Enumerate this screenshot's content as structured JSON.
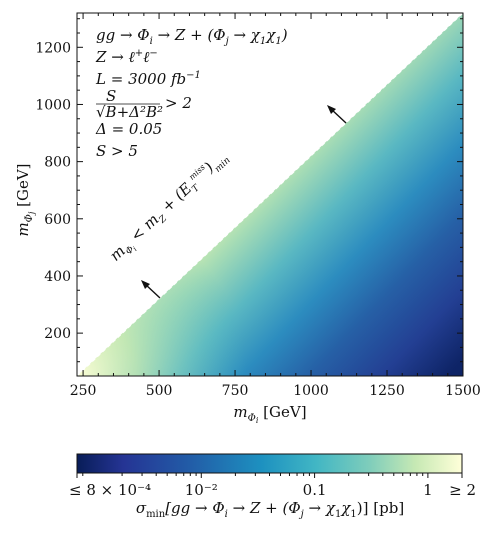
{
  "chart_data": {
    "type": "heatmap",
    "title": "",
    "xlabel": "m_{Φ_i} [GeV]",
    "ylabel": "m_{Φ_j} [GeV]",
    "xlim": [
      230,
      1500
    ],
    "ylim": [
      50,
      1320
    ],
    "x_ticks": [
      250,
      500,
      750,
      1000,
      1250,
      1500
    ],
    "x_tick_labels": [
      "250",
      "500",
      "750",
      "1000",
      "1250",
      "1500"
    ],
    "y_ticks": [
      200,
      400,
      600,
      800,
      1000,
      1200
    ],
    "y_tick_labels": [
      "200",
      "400",
      "600",
      "800",
      "1000",
      "1200"
    ],
    "grid": false,
    "colormap": "YlGnBu",
    "colorbar": {
      "scale": "log",
      "range": [
        0.0008,
        2
      ],
      "ticks": [
        0.0008,
        0.01,
        0.1,
        1,
        2
      ],
      "tick_labels": [
        "≤ 8 × 10⁻⁴",
        "10⁻²",
        "0.1",
        "1",
        "≥ 2"
      ],
      "label": "σ_min[gg → Φ_i → Z + (Φ_j → χ₁χ₁)] [pb]"
    },
    "boundary": {
      "description": "m_{Φ_j} < m_{Φ_i} − m_Z",
      "line": [
        [
          230,
          50
        ],
        [
          1500,
          1320
        ]
      ],
      "label": "m_{Φ_i} < m_Z + (E_T^miss)_min"
    },
    "annotations": [
      "gg → Φ_i → Z + (Φ_j → χ₁χ₁)",
      "Z → ℓ⁺ℓ⁻",
      "L = 3000 fb⁻¹",
      "S/√(B+Δ²B²) > 2",
      "Δ = 0.05",
      "S > 5"
    ]
  }
}
